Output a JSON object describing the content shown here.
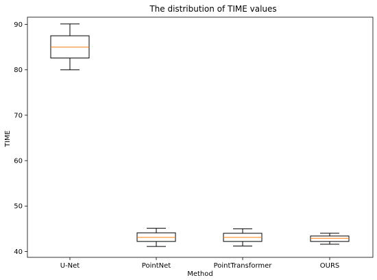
{
  "chart_data": {
    "type": "box",
    "title": "The distribution of TIME values",
    "xlabel": "Method",
    "ylabel": "TIME",
    "ylim": [
      38.7,
      91.6
    ],
    "yticks": [
      40,
      50,
      60,
      70,
      80,
      90
    ],
    "grid": false,
    "categories": [
      "U-Net",
      "PointNet",
      "PointTransformer",
      "OURS"
    ],
    "boxes": [
      {
        "whisker_low": 80.0,
        "q1": 82.6,
        "median": 85.0,
        "q3": 87.5,
        "whisker_high": 90.1
      },
      {
        "whisker_low": 41.1,
        "q1": 42.2,
        "median": 43.1,
        "q3": 44.1,
        "whisker_high": 45.1
      },
      {
        "whisker_low": 41.2,
        "q1": 42.2,
        "median": 43.1,
        "q3": 44.0,
        "whisker_high": 45.0
      },
      {
        "whisker_low": 41.6,
        "q1": 42.2,
        "median": 42.9,
        "q3": 43.4,
        "whisker_high": 44.0
      }
    ],
    "colors": {
      "box": "#000000",
      "median": "#ff7f0e"
    }
  }
}
